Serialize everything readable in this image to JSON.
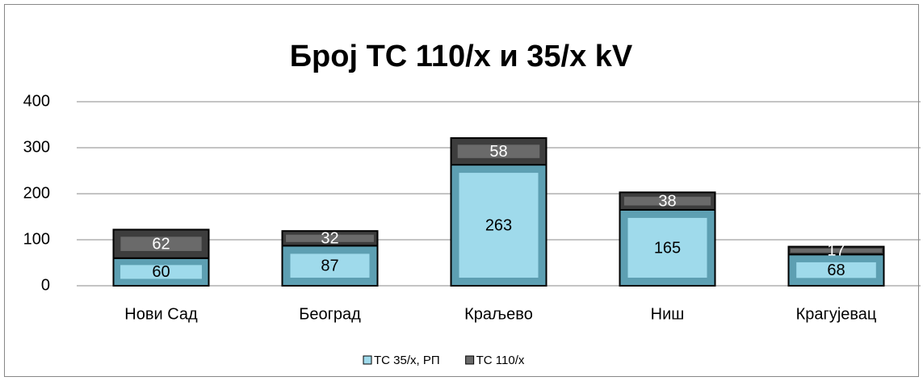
{
  "chart_data": {
    "type": "stacked_bar",
    "title": "Број ТС 110/х и 35/х kV",
    "categories": [
      "Нови Сад",
      "Београд",
      "Краљево",
      "Ниш",
      "Крагујевац"
    ],
    "series": [
      {
        "name": "ТС 35/х, РП",
        "color": "#9fdaeb",
        "values": [
          60,
          87,
          263,
          165,
          68
        ]
      },
      {
        "name": "ТС 110/х",
        "color": "#6a6a6a",
        "values": [
          62,
          32,
          58,
          38,
          17
        ]
      }
    ],
    "ylim": [
      0,
      400
    ],
    "yticks": [
      0,
      100,
      200,
      300,
      400
    ],
    "grid": true,
    "legend": "bottom"
  }
}
